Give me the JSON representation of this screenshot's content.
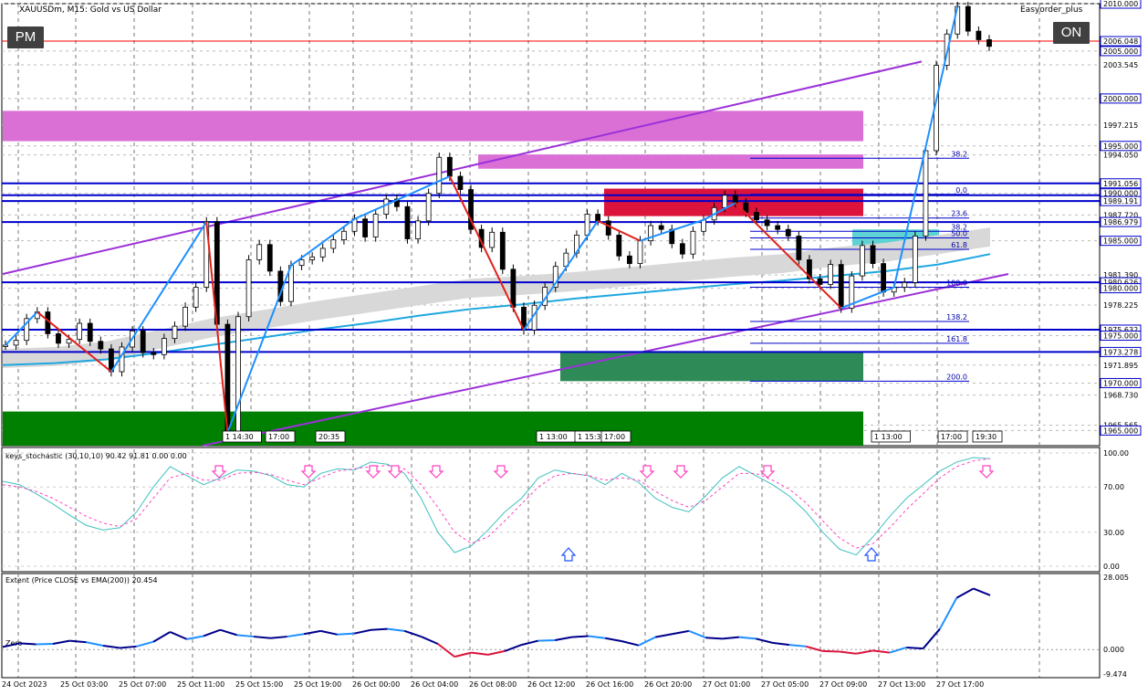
{
  "window": {
    "title": "XAUUSDm, M15:  Gold vs US Dollar",
    "expert_label": "Easyorder_plus"
  },
  "buttons": {
    "pm_label": "PM",
    "on_label": "ON"
  },
  "colors": {
    "up_zigzag": "#1e90ff",
    "down_zigzag": "#e0201b",
    "trendline": "#9b30d9",
    "hline": "#0000cd",
    "ema_band": "#d8d8d8",
    "ema_line": "#1ea7e0",
    "supply_zone": "#da70d6",
    "supply_zone_red": "#dc143c",
    "demand_zone": "#008000",
    "demand_zone_teal": "#2e8b57",
    "stoch_main": "#40c0c0",
    "stoch_signal": "#ff40c0",
    "extent_up": "#00008b",
    "extent_up2": "#1e90ff",
    "extent_down": "#dc143c",
    "current_price_line": "#ff0000"
  },
  "chart_data": [
    {
      "type": "candlestick",
      "symbol": "XAUUSDm",
      "timeframe": "M15",
      "ylim": [
        1963.4,
        2010.0
      ],
      "price_axis_labels": [
        "2010.000",
        "2006.048",
        "2005.000",
        "2003.545",
        "2000.000",
        "1997.215",
        "1995.000",
        "1994.050",
        "1991.056",
        "1990.000",
        "1989.191",
        "1987.720",
        "1986.979",
        "1985.000",
        "1981.390",
        "1980.626",
        "1980.000",
        "1978.225",
        "1975.632",
        "1975.000",
        "1973.278",
        "1971.895",
        "1970.000",
        "1968.730",
        "1965.565",
        "1965.000"
      ],
      "highlighted_levels": [
        "2010.000",
        "2006.048",
        "2005.000",
        "2000.000",
        "1995.000",
        "1991.056",
        "1990.000",
        "1989.191",
        "1986.979",
        "1985.000",
        "1980.626",
        "1980.000",
        "1975.632",
        "1975.000",
        "1973.278",
        "1970.000",
        "1965.000"
      ],
      "x_tick_labels": [
        "24 Oct 2023",
        "25 Oct 03:00",
        "25 Oct 07:00",
        "25 Oct 11:00",
        "25 Oct 15:00",
        "25 Oct 19:00",
        "26 Oct 00:00",
        "26 Oct 04:00",
        "26 Oct 08:00",
        "26 Oct 12:00",
        "26 Oct 16:00",
        "26 Oct 20:00",
        "27 Oct 01:00",
        "27 Oct 05:00",
        "27 Oct 09:00",
        "27 Oct 13:00",
        "27 Oct 17:00"
      ],
      "session_labels": [
        "1",
        "14:30",
        "17:00",
        "20:35",
        "1",
        "13:00",
        "1",
        "15:30",
        "17:00",
        "1",
        "13:00",
        "17:00",
        "19:30"
      ],
      "fib_levels": [
        "0.0",
        "23.6",
        "38.2",
        "50.0",
        "61.8",
        "100.0",
        "138.2",
        "161.8",
        "200.0",
        "38.2"
      ],
      "close_path": [
        1974.0,
        1974.5,
        1976.8,
        1977.5,
        1975.2,
        1974.2,
        1974.6,
        1976.3,
        1974.4,
        1973.6,
        1971.2,
        1973.8,
        1975.5,
        1973.2,
        1973.0,
        1974.7,
        1976.0,
        1978.0,
        1980.1,
        1987.0,
        1976.2,
        1964.8,
        1977.0,
        1983.0,
        1984.6,
        1981.8,
        1978.6,
        1982.4,
        1983.0,
        1983.3,
        1984.2,
        1985.1,
        1986.0,
        1987.3,
        1985.4,
        1987.8,
        1989.4,
        1988.6,
        1985.2,
        1987.1,
        1990.0,
        1993.8,
        1991.8,
        1990.4,
        1986.2,
        1984.3,
        1985.9,
        1982.0,
        1978.0,
        1975.6,
        1978.2,
        1980.1,
        1982.3,
        1983.7,
        1985.6,
        1987.8,
        1987.1,
        1985.6,
        1983.4,
        1982.6,
        1985.0,
        1986.6,
        1986.2,
        1984.7,
        1983.6,
        1986.0,
        1987.2,
        1988.5,
        1989.8,
        1989.0,
        1988.0,
        1987.2,
        1986.6,
        1986.2,
        1985.5,
        1983.0,
        1981.0,
        1980.4,
        1982.5,
        1977.9,
        1981.3,
        1984.5,
        1982.6,
        1979.6,
        1980.1,
        1980.6,
        1985.5,
        1994.5,
        2003.5,
        2006.8,
        2009.7,
        2007.1,
        2006.2,
        2005.5
      ],
      "ema_band_path": [
        1972.6,
        1972.8,
        1973.4,
        1974.6,
        1975.8,
        1976.7,
        1977.6,
        1978.4,
        1979.2,
        1980.0,
        1980.3,
        1980.7,
        1981.2,
        1981.7,
        1982.2,
        1982.6,
        1983.3,
        1983.8,
        1984.6,
        1985.4
      ],
      "ema_line_path": [
        1971.9,
        1972.1,
        1972.5,
        1973.2,
        1974.0,
        1974.8,
        1975.6,
        1976.3,
        1977.1,
        1977.8,
        1978.3,
        1978.9,
        1979.4,
        1979.9,
        1980.4,
        1980.8,
        1981.3,
        1981.8,
        1982.5,
        1983.6
      ]
    },
    {
      "type": "line",
      "title": "keys_stochastic (30,10,10) 90.42 91.81 0.00 0.00",
      "ylim": [
        0,
        100
      ],
      "y_tick_labels": [
        "100.00",
        "70.00",
        "30.00",
        "0.00"
      ],
      "series": [
        {
          "values": [
            75,
            72,
            64,
            55,
            45,
            36,
            32,
            34,
            48,
            70,
            88,
            80,
            72,
            78,
            85,
            84,
            80,
            72,
            70,
            82,
            86,
            85,
            92,
            90,
            82,
            60,
            30,
            12,
            18,
            32,
            48,
            60,
            78,
            85,
            82,
            80,
            72,
            82,
            74,
            60,
            52,
            48,
            62,
            78,
            88,
            80,
            72,
            62,
            48,
            30,
            15,
            10,
            26,
            44,
            60,
            72,
            84,
            92,
            96,
            95
          ]
        },
        {
          "values": [
            72,
            70,
            66,
            60,
            52,
            44,
            38,
            35,
            42,
            60,
            78,
            82,
            76,
            76,
            82,
            83,
            81,
            76,
            72,
            78,
            84,
            86,
            88,
            89,
            86,
            72,
            52,
            30,
            20,
            26,
            40,
            55,
            70,
            80,
            82,
            80,
            76,
            78,
            76,
            66,
            58,
            52,
            58,
            70,
            82,
            82,
            76,
            68,
            56,
            40,
            25,
            16,
            20,
            34,
            50,
            64,
            78,
            88,
            93,
            95
          ]
        }
      ]
    },
    {
      "type": "line",
      "title": "Extent (Price CLOSE vs EMA(200)) 20.454",
      "ylim": [
        -9.474,
        28.005
      ],
      "y_tick_labels": [
        "28.005",
        "0.000",
        "-9.474"
      ],
      "zero_label": "Zero",
      "series": [
        {
          "values": [
            1.0,
            2.4,
            2.0,
            2.2,
            3.4,
            2.8,
            1.5,
            0.6,
            1.2,
            3.0,
            6.8,
            4.0,
            5.2,
            7.6,
            5.6,
            5.0,
            4.4,
            5.0,
            6.0,
            7.2,
            5.8,
            6.2,
            7.6,
            8.0,
            7.2,
            5.0,
            2.2,
            -2.8,
            -1.2,
            -2.0,
            -0.6,
            1.8,
            3.4,
            3.6,
            4.8,
            5.2,
            4.4,
            3.2,
            1.6,
            4.8,
            6.0,
            7.2,
            4.6,
            4.2,
            4.8,
            4.2,
            2.6,
            1.8,
            1.2,
            -0.6,
            -0.8,
            -1.6,
            -0.4,
            -1.2,
            0.8,
            0.4,
            8.0,
            20.0,
            23.6,
            21.0
          ]
        }
      ]
    }
  ]
}
